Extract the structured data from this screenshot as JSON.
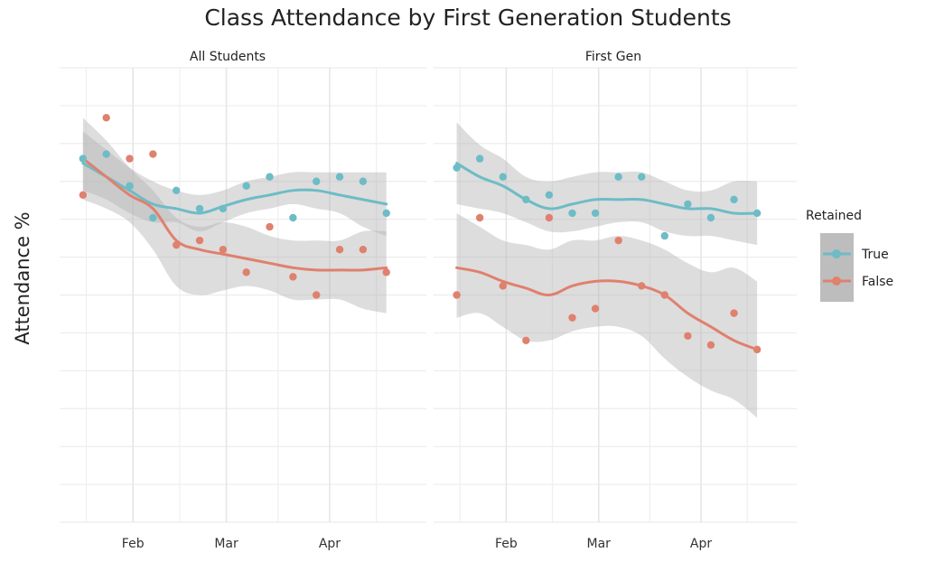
{
  "chart_data": {
    "type": "scatter",
    "title": "Class Attendance by First Generation Students",
    "xlabel": "",
    "ylabel": "Attendance %",
    "x_ticks": [
      "Feb",
      "Mar",
      "Apr"
    ],
    "x_tick_dates": [
      "2023-02-01",
      "2023-03-01",
      "2023-04-01"
    ],
    "xlim": [
      "2023-01-10",
      "2023-04-30"
    ],
    "ylim": [
      0,
      10
    ],
    "grid": true,
    "legend": {
      "title": "Retained",
      "placement": "right",
      "entries": [
        {
          "label": "True",
          "color": "#6dbcc6"
        },
        {
          "label": "False",
          "color": "#e0806e"
        }
      ]
    },
    "colors": {
      "true": "#6dbcc6",
      "false": "#e0806e",
      "band": "#b4b4b4"
    },
    "panels": [
      {
        "strip": "All Students",
        "series": [
          {
            "label": "True",
            "x": [
              "2023-01-17",
              "2023-01-24",
              "2023-01-31",
              "2023-02-07",
              "2023-02-14",
              "2023-02-21",
              "2023-02-28",
              "2023-03-07",
              "2023-03-14",
              "2023-03-21",
              "2023-03-28",
              "2023-04-04",
              "2023-04-11",
              "2023-04-18"
            ],
            "y": [
              8.0,
              8.1,
              7.4,
              6.7,
              7.3,
              6.9,
              6.9,
              7.4,
              7.6,
              6.7,
              7.5,
              7.6,
              7.5,
              6.8
            ],
            "smooth": [
              7.9,
              7.6,
              7.3,
              7.0,
              6.9,
              6.8,
              6.95,
              7.1,
              7.2,
              7.3,
              7.3,
              7.2,
              7.1,
              7.0
            ],
            "band_upper": [
              8.6,
              8.2,
              7.8,
              7.5,
              7.3,
              7.2,
              7.3,
              7.5,
              7.6,
              7.7,
              7.7,
              7.7,
              7.7,
              7.7
            ],
            "band_lower": [
              7.3,
              7.1,
              6.8,
              6.6,
              6.6,
              6.4,
              6.6,
              6.8,
              6.9,
              7.0,
              6.9,
              6.8,
              6.5,
              6.3
            ]
          },
          {
            "label": "False",
            "x": [
              "2023-01-17",
              "2023-01-24",
              "2023-01-31",
              "2023-02-07",
              "2023-02-14",
              "2023-02-21",
              "2023-02-28",
              "2023-03-07",
              "2023-03-14",
              "2023-03-21",
              "2023-03-28",
              "2023-04-04",
              "2023-04-11",
              "2023-04-18"
            ],
            "y": [
              7.2,
              8.9,
              8.0,
              8.1,
              6.1,
              6.2,
              6.0,
              5.5,
              6.5,
              5.4,
              5.0,
              6.0,
              6.0,
              5.5
            ],
            "smooth": [
              8.0,
              7.6,
              7.2,
              6.9,
              6.2,
              6.0,
              5.9,
              5.8,
              5.7,
              5.6,
              5.55,
              5.55,
              5.55,
              5.6
            ],
            "band_upper": [
              8.9,
              8.4,
              7.8,
              7.3,
              6.7,
              6.5,
              6.6,
              6.5,
              6.3,
              6.2,
              6.2,
              6.2,
              6.4,
              6.4
            ],
            "band_lower": [
              7.1,
              6.9,
              6.6,
              6.0,
              5.2,
              5.0,
              5.1,
              5.2,
              5.1,
              4.9,
              4.9,
              4.9,
              4.7,
              4.6
            ]
          }
        ]
      },
      {
        "strip": "First Gen",
        "series": [
          {
            "label": "True",
            "x": [
              "2023-01-17",
              "2023-01-24",
              "2023-01-31",
              "2023-02-07",
              "2023-02-14",
              "2023-02-21",
              "2023-02-28",
              "2023-03-07",
              "2023-03-14",
              "2023-03-21",
              "2023-03-28",
              "2023-04-04",
              "2023-04-11",
              "2023-04-18"
            ],
            "y": [
              7.8,
              8.0,
              7.6,
              7.1,
              7.2,
              6.8,
              6.8,
              7.6,
              7.6,
              6.3,
              7.0,
              6.7,
              7.1,
              6.8
            ],
            "smooth": [
              7.9,
              7.6,
              7.4,
              7.1,
              6.9,
              7.0,
              7.1,
              7.1,
              7.1,
              7.0,
              6.9,
              6.9,
              6.8,
              6.8
            ],
            "band_upper": [
              8.8,
              8.3,
              8.0,
              7.6,
              7.5,
              7.6,
              7.7,
              7.7,
              7.7,
              7.5,
              7.3,
              7.3,
              7.5,
              7.5
            ],
            "band_lower": [
              7.0,
              6.9,
              6.8,
              6.6,
              6.4,
              6.4,
              6.5,
              6.6,
              6.6,
              6.4,
              6.3,
              6.3,
              6.2,
              6.1
            ]
          },
          {
            "label": "False",
            "x": [
              "2023-01-17",
              "2023-01-24",
              "2023-01-31",
              "2023-02-07",
              "2023-02-14",
              "2023-02-21",
              "2023-02-28",
              "2023-03-07",
              "2023-03-14",
              "2023-03-21",
              "2023-03-28",
              "2023-04-04",
              "2023-04-11",
              "2023-04-18"
            ],
            "y": [
              5.0,
              6.7,
              5.2,
              4.0,
              6.7,
              4.5,
              4.7,
              6.2,
              5.2,
              5.0,
              4.1,
              3.9,
              4.6,
              3.8
            ],
            "smooth": [
              5.6,
              5.5,
              5.3,
              5.15,
              5.0,
              5.2,
              5.3,
              5.3,
              5.2,
              5.0,
              4.6,
              4.3,
              4.0,
              3.8
            ],
            "band_upper": [
              6.8,
              6.5,
              6.2,
              6.1,
              6.0,
              6.2,
              6.2,
              6.3,
              6.2,
              6.0,
              5.7,
              5.5,
              5.6,
              5.3
            ],
            "band_lower": [
              4.5,
              4.6,
              4.3,
              4.0,
              4.0,
              4.2,
              4.3,
              4.3,
              4.1,
              3.6,
              3.2,
              2.9,
              2.7,
              2.3
            ]
          }
        ]
      }
    ]
  }
}
